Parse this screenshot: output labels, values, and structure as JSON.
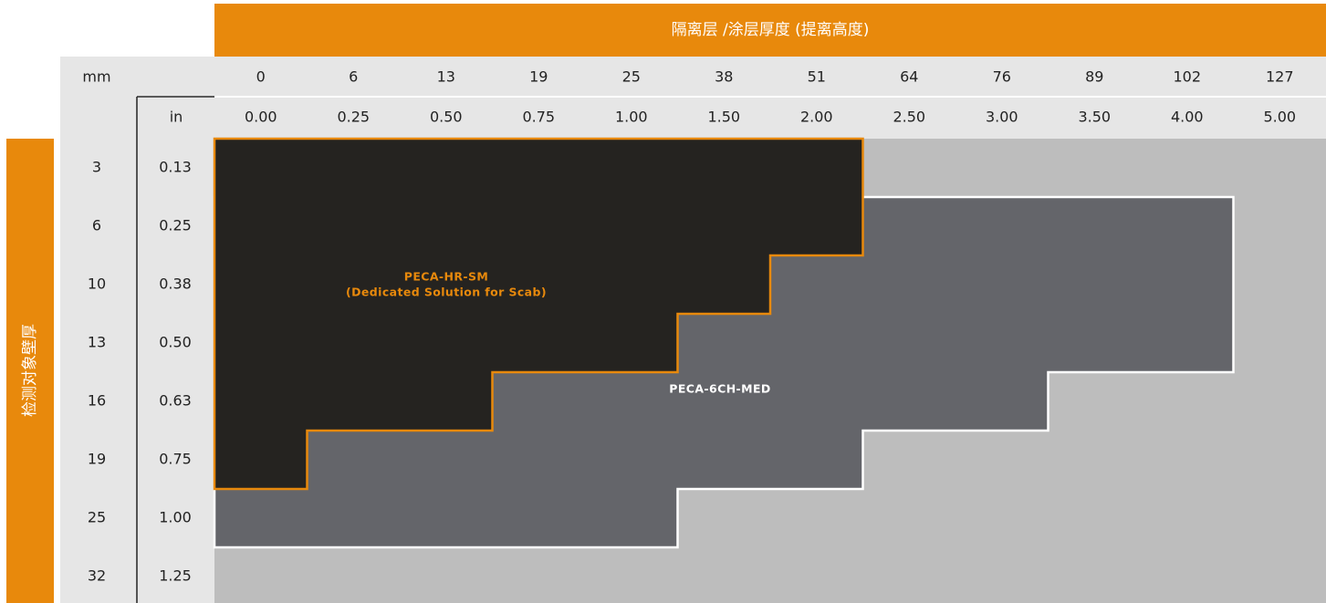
{
  "chart_data": {
    "type": "table",
    "top_header": "隔离层 /涂层厚度 (提离高度)",
    "side_header": "检测对象壁厚",
    "column_units": {
      "mm": "mm",
      "in": "in"
    },
    "columns_mm": [
      "0",
      "6",
      "13",
      "19",
      "25",
      "38",
      "51",
      "64",
      "76",
      "89",
      "102",
      "127"
    ],
    "columns_in": [
      "0.00",
      "0.25",
      "0.50",
      "0.75",
      "1.00",
      "1.50",
      "2.00",
      "2.50",
      "3.00",
      "3.50",
      "4.00",
      "5.00"
    ],
    "rows_mm": [
      "3",
      "6",
      "10",
      "13",
      "16",
      "19",
      "25",
      "32"
    ],
    "rows_in": [
      "0.13",
      "0.25",
      "0.38",
      "0.50",
      "0.63",
      "0.75",
      "1.00",
      "1.25"
    ],
    "regions": [
      {
        "label_lines": [
          "PECA-HR-SM",
          "(Dedicated Solution for Scab)"
        ],
        "fill": "#252320",
        "outline": "#e8890c",
        "text_color": "#e8890c",
        "max_lift_off_column_index_by_row": [
          6,
          6,
          5,
          4,
          2,
          0
        ]
      },
      {
        "label_lines": [
          "PECA-6CH-MED"
        ],
        "fill": "#64656a",
        "outline": "#ffffff",
        "text_color": "#ffffff",
        "max_lift_off_column_index_by_row": [
          null,
          10,
          10,
          10,
          8,
          6,
          4
        ]
      }
    ],
    "colors": {
      "accent": "#e8890c",
      "header_band": "#e6e6e6",
      "background_cell": "#bdbdbd"
    }
  }
}
